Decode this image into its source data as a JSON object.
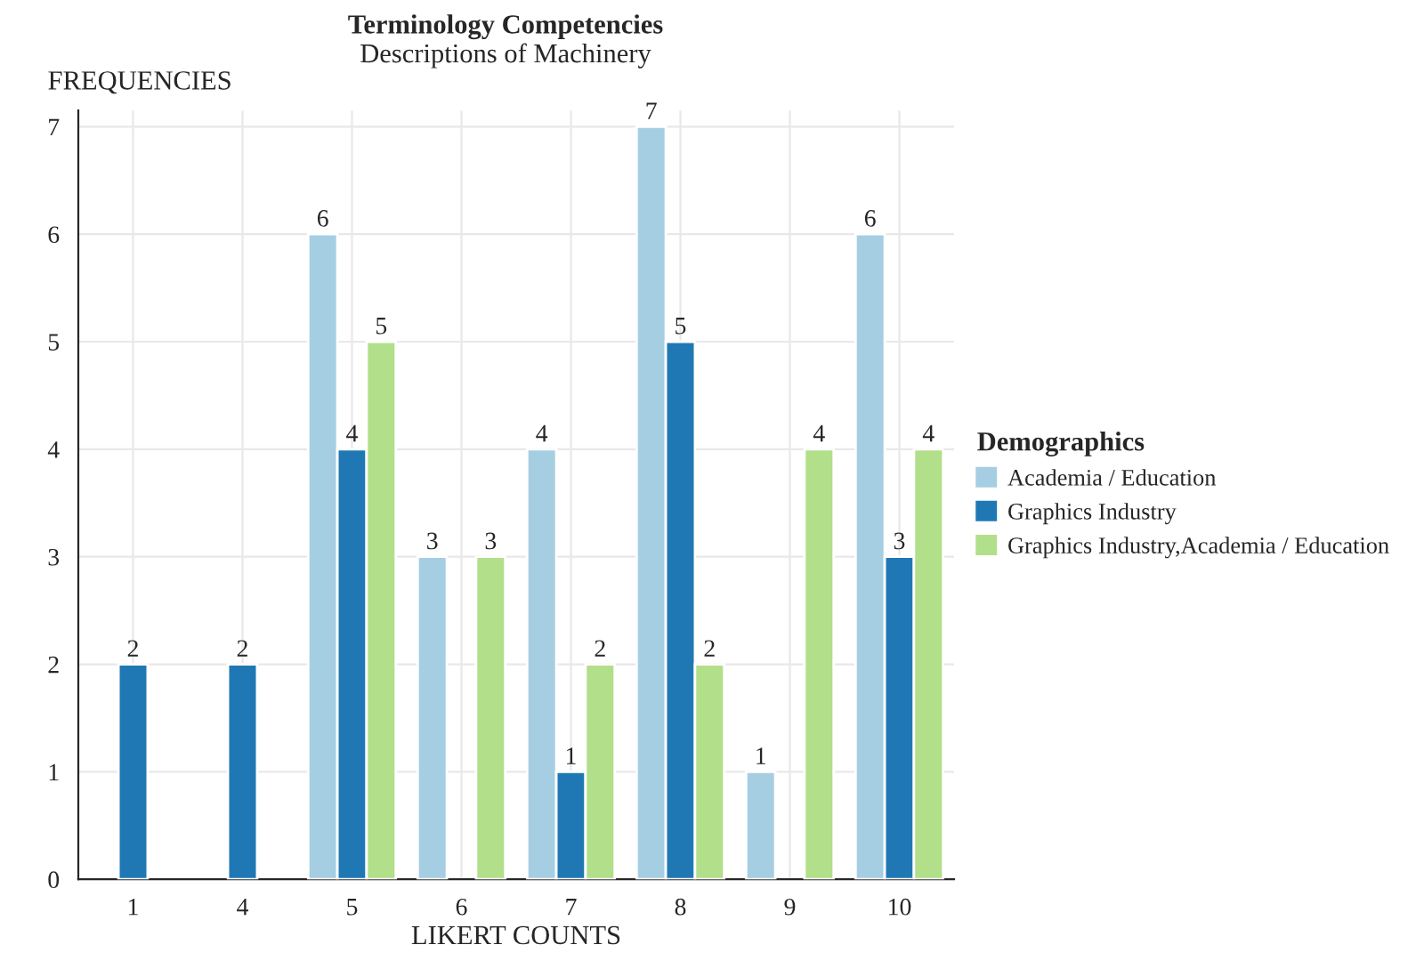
{
  "chart_data": {
    "type": "bar",
    "title": "Terminology Competencies",
    "subtitle": "Descriptions of Machinery",
    "xlabel": "LIKERT COUNTS",
    "ylabel": "FREQUENCIES",
    "legend_title": "Demographics",
    "categories": [
      "1",
      "4",
      "5",
      "6",
      "7",
      "8",
      "9",
      "10"
    ],
    "series": [
      {
        "name": "Academia / Education",
        "color": "#a6cee3",
        "values": [
          null,
          null,
          6,
          3,
          4,
          7,
          1,
          6
        ]
      },
      {
        "name": "Graphics Industry",
        "color": "#1f78b4",
        "values": [
          2,
          2,
          4,
          null,
          1,
          5,
          null,
          3
        ]
      },
      {
        "name": "Graphics Industry,Academia / Education",
        "color": "#b2df8a",
        "values": [
          null,
          null,
          5,
          3,
          2,
          2,
          4,
          4
        ]
      }
    ],
    "ylim": [
      0,
      7.15
    ],
    "yticks": [
      0,
      1,
      2,
      3,
      4,
      5,
      6,
      7
    ],
    "grid": true,
    "legend": "right",
    "data_labels": true
  }
}
